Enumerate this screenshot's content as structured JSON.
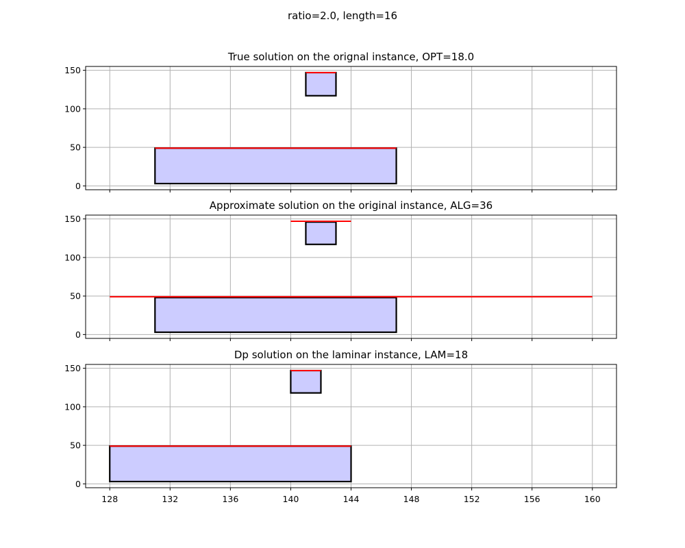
{
  "figure": {
    "suptitle": "ratio=2.0, length=16"
  },
  "chart_data": [
    {
      "type": "bar",
      "title": "True solution on the orignal instance, OPT=18.0",
      "xlim": [
        126.4,
        161.6
      ],
      "ylim": [
        -5,
        155
      ],
      "xticks": [
        128,
        132,
        136,
        140,
        144,
        148,
        152,
        156,
        160
      ],
      "yticks": [
        0,
        50,
        100,
        150
      ],
      "show_xtick_labels": false,
      "grid": true,
      "rectangles": [
        {
          "x0": 131,
          "x1": 147,
          "y0": 3,
          "y1": 49
        },
        {
          "x0": 141,
          "x1": 143,
          "y0": 117,
          "y1": 147
        }
      ],
      "segments": [
        {
          "x0": 131,
          "x1": 147,
          "y": 49
        },
        {
          "x0": 141,
          "x1": 143,
          "y": 147
        }
      ]
    },
    {
      "type": "bar",
      "title": "Approximate solution on the original instance, ALG=36",
      "xlim": [
        126.4,
        161.6
      ],
      "ylim": [
        -5,
        155
      ],
      "xticks": [
        128,
        132,
        136,
        140,
        144,
        148,
        152,
        156,
        160
      ],
      "yticks": [
        0,
        50,
        100,
        150
      ],
      "show_xtick_labels": false,
      "grid": true,
      "rectangles": [
        {
          "x0": 131,
          "x1": 147,
          "y0": 3,
          "y1": 48
        },
        {
          "x0": 141,
          "x1": 143,
          "y0": 117,
          "y1": 146
        }
      ],
      "segments": [
        {
          "x0": 128,
          "x1": 160,
          "y": 49
        },
        {
          "x0": 140,
          "x1": 144,
          "y": 147
        }
      ]
    },
    {
      "type": "bar",
      "title": "Dp solution on the laminar instance, LAM=18",
      "xlim": [
        126.4,
        161.6
      ],
      "ylim": [
        -5,
        155
      ],
      "xticks": [
        128,
        132,
        136,
        140,
        144,
        148,
        152,
        156,
        160
      ],
      "yticks": [
        0,
        50,
        100,
        150
      ],
      "show_xtick_labels": true,
      "grid": true,
      "rectangles": [
        {
          "x0": 128,
          "x1": 144,
          "y0": 3,
          "y1": 49
        },
        {
          "x0": 140,
          "x1": 142,
          "y0": 118,
          "y1": 147
        }
      ],
      "segments": [
        {
          "x0": 128,
          "x1": 144,
          "y": 49
        },
        {
          "x0": 140,
          "x1": 142,
          "y": 147
        }
      ]
    }
  ],
  "colors": {
    "rect_fill": "#ccccff",
    "rect_edge": "#000000",
    "segment": "#ff0000",
    "grid": "#b0b0b0"
  }
}
